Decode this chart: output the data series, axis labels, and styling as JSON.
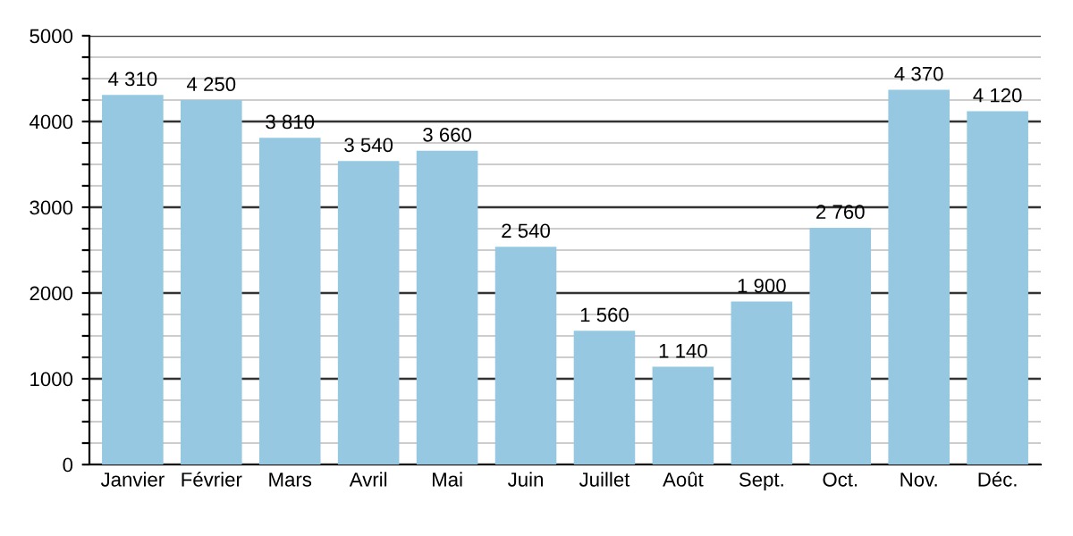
{
  "chart_data": {
    "type": "bar",
    "categories": [
      "Janvier",
      "Février",
      "Mars",
      "Avril",
      "Mai",
      "Juin",
      "Juillet",
      "Août",
      "Sept.",
      "Oct.",
      "Nov.",
      "Déc."
    ],
    "values": [
      4310,
      4250,
      3810,
      3540,
      3660,
      2540,
      1560,
      1140,
      1900,
      2760,
      4370,
      4120
    ],
    "value_labels": [
      "4 310",
      "4 250",
      "3 810",
      "3 540",
      "3 660",
      "2 540",
      "1 560",
      "1 140",
      "1 900",
      "2 760",
      "4 370",
      "4 120"
    ],
    "color": "#96c8e2",
    "ylim": [
      0,
      5000
    ],
    "yticks": [
      0,
      {
        "value": 250,
        "label": null
      },
      {
        "value": 500,
        "label": null
      },
      {
        "value": 750,
        "label": null
      },
      1000,
      {
        "value": 1250,
        "label": null
      },
      {
        "value": 1500,
        "label": null
      },
      {
        "value": 1750,
        "label": null
      },
      2000,
      {
        "value": 2250,
        "label": null
      },
      {
        "value": 2500,
        "label": null
      },
      {
        "value": 2750,
        "label": null
      },
      3000,
      {
        "value": 3250,
        "label": null
      },
      {
        "value": 3500,
        "label": null
      },
      {
        "value": 3750,
        "label": null
      },
      4000,
      {
        "value": 4250,
        "label": null
      },
      {
        "value": 4500,
        "label": null
      },
      {
        "value": 4750,
        "label": null
      },
      5000
    ],
    "grid": "y"
  }
}
